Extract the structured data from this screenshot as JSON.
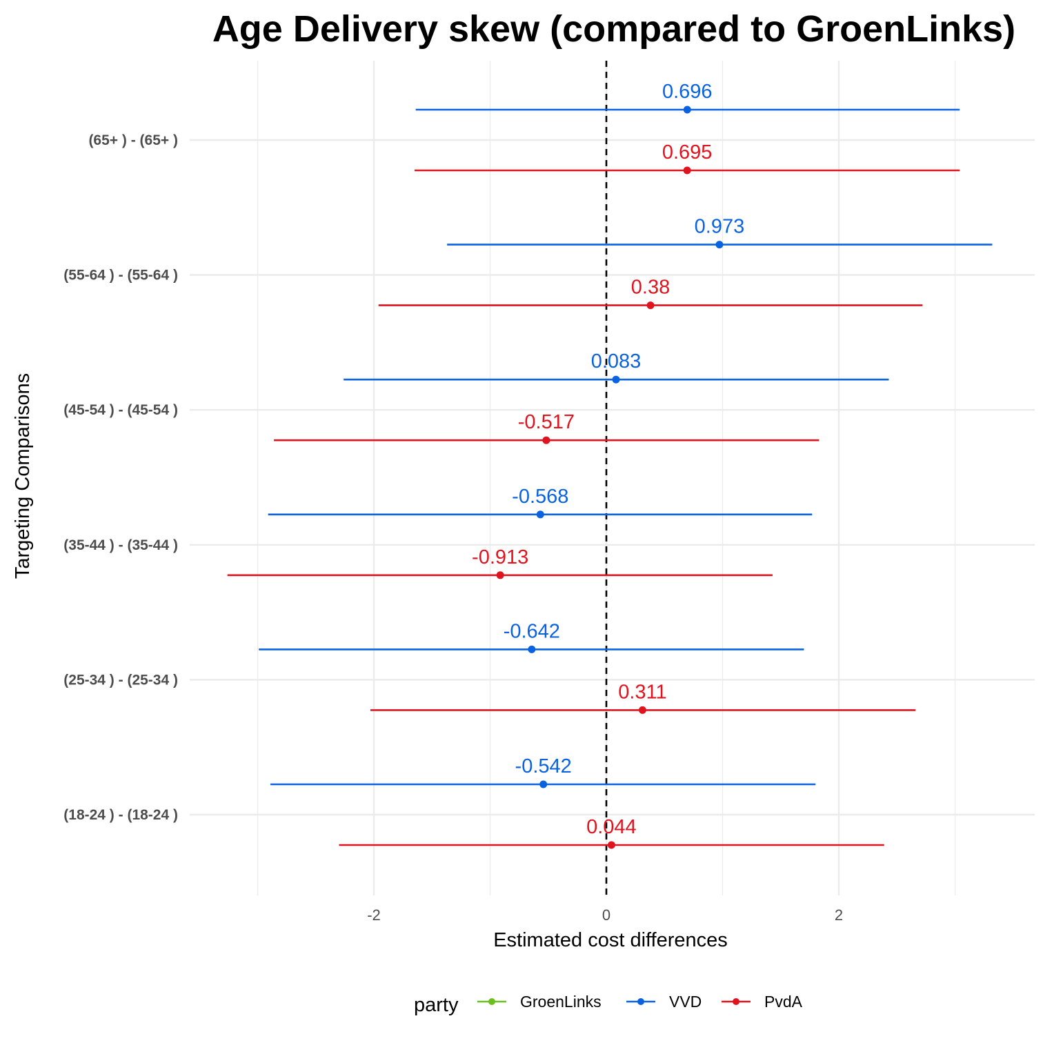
{
  "chart_data": {
    "type": "forest",
    "title": "Age Delivery skew (compared to GroenLinks)",
    "xlabel": "Estimated cost differences",
    "ylabel": "Targeting Comparisons",
    "xlim": [
      -3.0,
      3.6
    ],
    "x_ticks": [
      {
        "value": -2,
        "label": "-2"
      },
      {
        "value": 0,
        "label": "0"
      },
      {
        "value": 2,
        "label": "2"
      }
    ],
    "reference_line": 0,
    "categories": [
      "(65+ ) - (65+ )",
      "(55-64 ) - (55-64 )",
      "(45-54 ) - (45-54 )",
      "(35-44 ) - (35-44 )",
      "(25-34 ) - (25-34 )",
      "(18-24 ) - (18-24 )"
    ],
    "series": [
      {
        "name": "VVD",
        "color": "#0a62e0",
        "points": [
          {
            "estimate": 0.696,
            "label": "0.696",
            "low": -1.64,
            "high": 3.04
          },
          {
            "estimate": 0.973,
            "label": "0.973",
            "low": -1.37,
            "high": 3.32
          },
          {
            "estimate": 0.083,
            "label": "0.083",
            "low": -2.26,
            "high": 2.43
          },
          {
            "estimate": -0.568,
            "label": "-0.568",
            "low": -2.91,
            "high": 1.77
          },
          {
            "estimate": -0.642,
            "label": "-0.642",
            "low": -2.99,
            "high": 1.7
          },
          {
            "estimate": -0.542,
            "label": "-0.542",
            "low": -2.89,
            "high": 1.8
          }
        ]
      },
      {
        "name": "PvdA",
        "color": "#e0141e",
        "points": [
          {
            "estimate": 0.695,
            "label": "0.695",
            "low": -1.65,
            "high": 3.04
          },
          {
            "estimate": 0.38,
            "label": "0.38",
            "low": -1.96,
            "high": 2.72
          },
          {
            "estimate": -0.517,
            "label": "-0.517",
            "low": -2.86,
            "high": 1.83
          },
          {
            "estimate": -0.913,
            "label": "-0.913",
            "low": -3.26,
            "high": 1.43
          },
          {
            "estimate": 0.311,
            "label": "0.311",
            "low": -2.03,
            "high": 2.66
          },
          {
            "estimate": 0.044,
            "label": "0.044",
            "low": -2.3,
            "high": 2.39
          }
        ]
      }
    ],
    "legend": {
      "title": "party",
      "position": "bottom",
      "items": [
        {
          "label": "GroenLinks",
          "color": "#6cbf1f"
        },
        {
          "label": "VVD",
          "color": "#0a62e0"
        },
        {
          "label": "PvdA",
          "color": "#e0141e"
        }
      ]
    },
    "grid": true
  }
}
